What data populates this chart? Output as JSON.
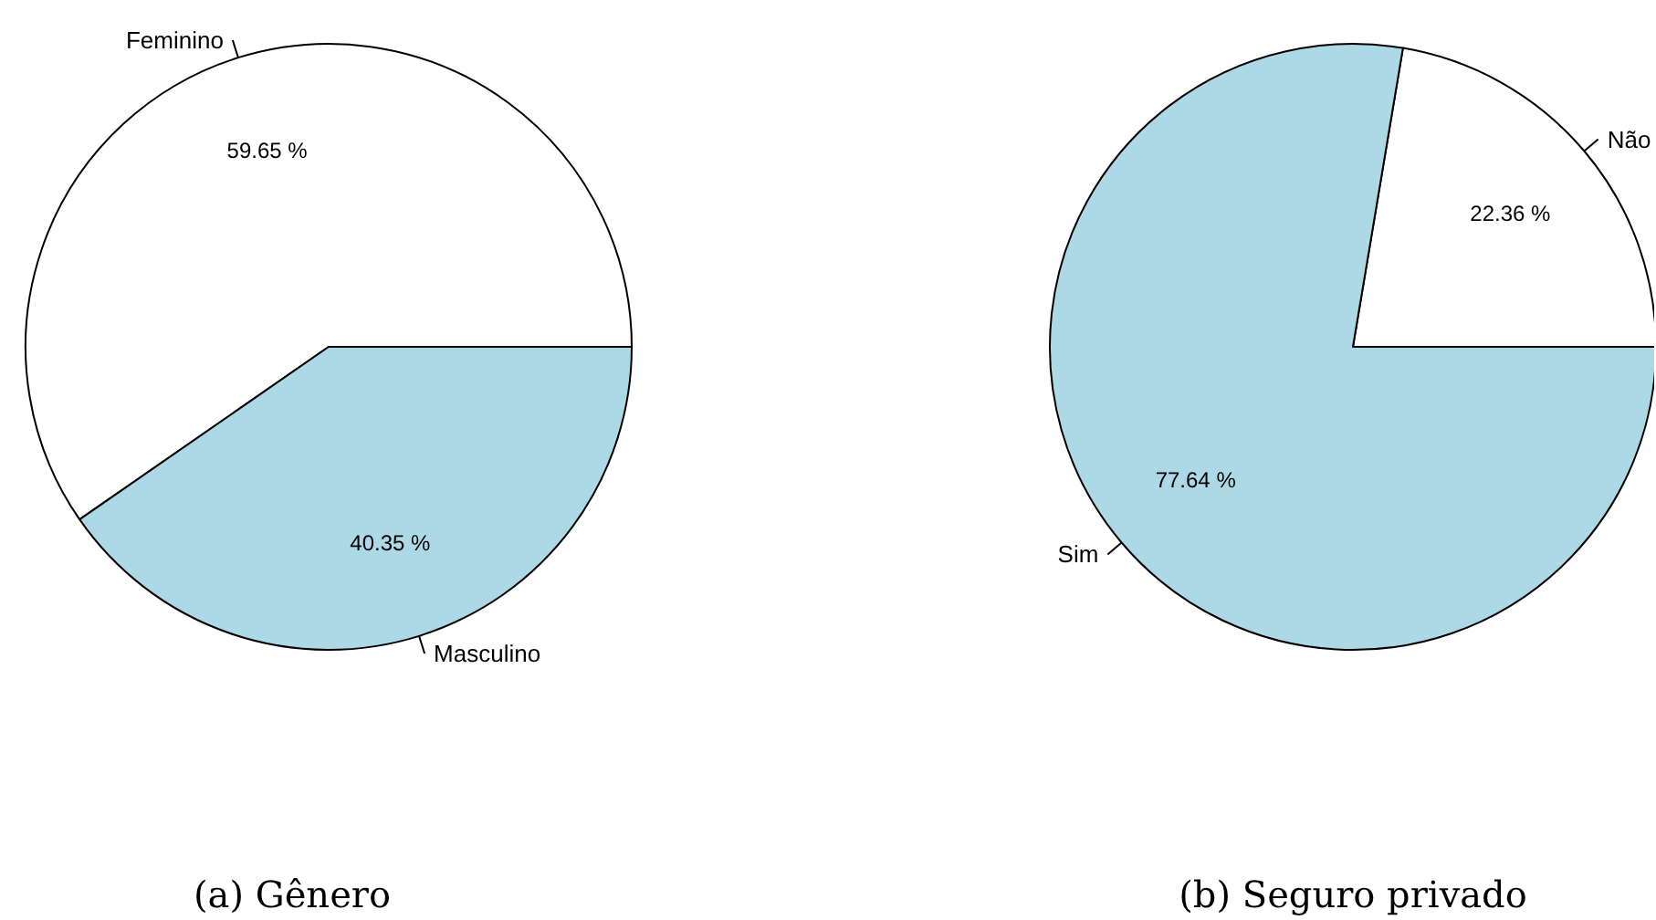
{
  "chart_data": [
    {
      "type": "pie",
      "title": "(a) Gênero",
      "categories": [
        "Feminino",
        "Masculino"
      ],
      "values": [
        59.65,
        40.35
      ],
      "colors": [
        "#ffffff",
        "#add8e6"
      ],
      "value_labels": [
        "59.65 %",
        "40.35 %"
      ]
    },
    {
      "type": "pie",
      "title": "(b) Seguro privado",
      "categories": [
        "Não",
        "Sim"
      ],
      "values": [
        22.36,
        77.64
      ],
      "colors": [
        "#ffffff",
        "#add8e6"
      ],
      "value_labels": [
        "22.36 %",
        "77.64 %"
      ]
    }
  ]
}
